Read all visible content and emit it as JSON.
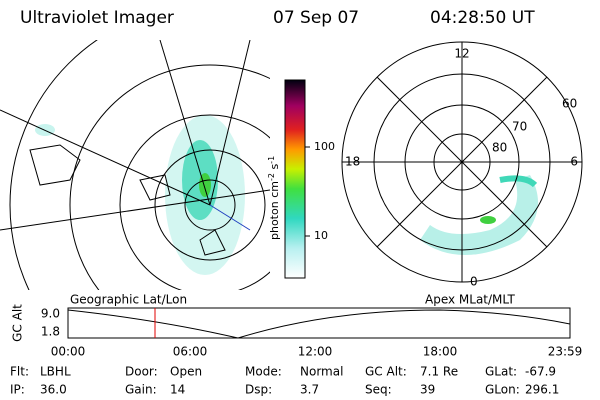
{
  "header": {
    "title": "Ultraviolet Imager",
    "date": "07 Sep 07",
    "time": "04:28:50 UT"
  },
  "colorbar": {
    "unit": "photon cm",
    "exp1": "-2",
    "unit2": " s",
    "exp2": "-1",
    "ticks": [
      "100",
      "10"
    ]
  },
  "polar": {
    "hours": {
      "top": "12",
      "left": "18",
      "right": "6",
      "bottom": "0"
    },
    "latitudes": [
      "60",
      "70",
      "80"
    ]
  },
  "panel_labels": {
    "left": "Geographic Lat/Lon",
    "right": "Apex MLat/MLT"
  },
  "timeline": {
    "axis_label": "GC Alt",
    "y_labels": [
      "9.0",
      "1.8"
    ],
    "x_labels": [
      "00:00",
      "06:00",
      "12:00",
      "18:00",
      "23:59"
    ]
  },
  "info": [
    [
      {
        "label": "Flt:",
        "value": "LBHL"
      },
      {
        "label": "Door:",
        "value": "Open"
      },
      {
        "label": "Mode:",
        "value": "Normal"
      },
      {
        "label": "GC Alt:",
        "value": "7.1 Re"
      },
      {
        "label": "GLat:",
        "value": "-67.9"
      }
    ],
    [
      {
        "label": "IP:",
        "value": "36.0"
      },
      {
        "label": "Gain:",
        "value": "14"
      },
      {
        "label": "Dsp:",
        "value": "3.7"
      },
      {
        "label": "Seq:",
        "value": "39"
      },
      {
        "label": "GLon:",
        "value": "296.1"
      }
    ]
  ]
}
